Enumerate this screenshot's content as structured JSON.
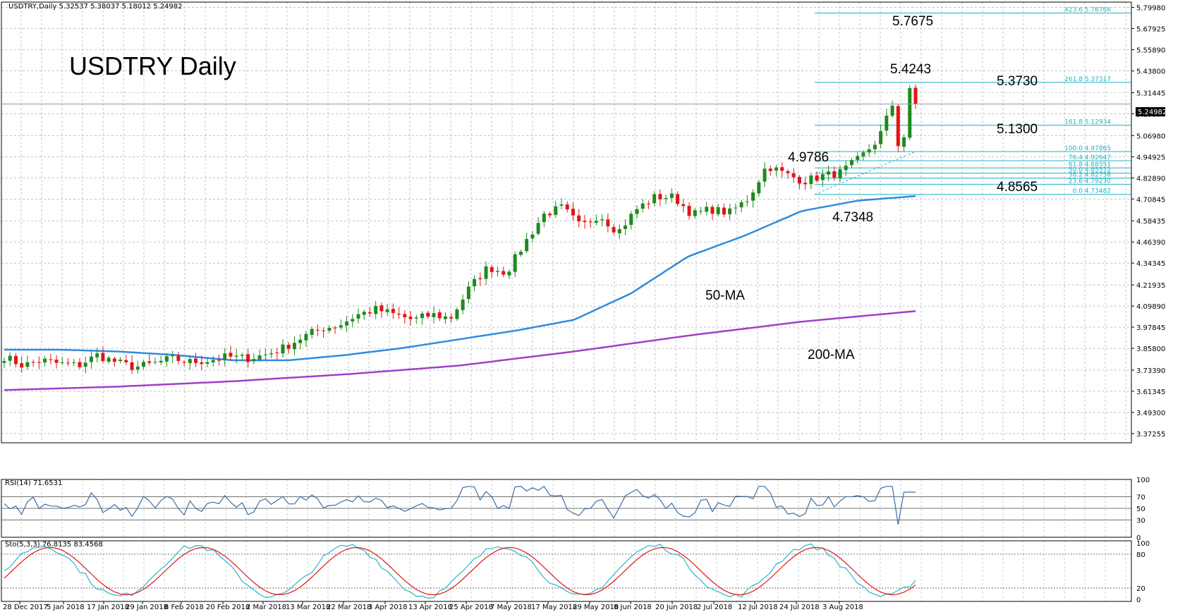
{
  "header": {
    "main": "USDTRY,Daily  5.32537 5.38037 5.18012 5.24982",
    "rsi": "RSI(14) 71.6531",
    "sto": "Sto(5,3,3) 76.8135 83.4568"
  },
  "title": "USDTRY Daily",
  "current_price_label": "5.24982",
  "colors": {
    "bull": "#1e8a1e",
    "bear": "#e01515",
    "ma50": "#2f8be0",
    "ma200": "#a040c8",
    "fib": "#1fb3c6",
    "grid": "#9aa0a6",
    "rsi_line": "#3a6fa8",
    "sto_main": "#26b8c8",
    "sto_signal": "#e01515"
  },
  "annotations": [
    {
      "name": "annotation-5-7675",
      "text": "5.7675"
    },
    {
      "name": "annotation-5-4243",
      "text": "5.4243"
    },
    {
      "name": "annotation-5-3730",
      "text": "5.3730"
    },
    {
      "name": "annotation-5-1300",
      "text": "5.1300"
    },
    {
      "name": "annotation-4-9786",
      "text": "4.9786"
    },
    {
      "name": "annotation-4-8565",
      "text": "4.8565"
    },
    {
      "name": "annotation-4-7348",
      "text": "4.7348"
    },
    {
      "name": "annotation-50-ma",
      "text": "50-MA"
    },
    {
      "name": "annotation-200-ma",
      "text": "200-MA"
    }
  ],
  "fib_levels": [
    {
      "label": "423.6  5.76766",
      "value": 5.76766
    },
    {
      "label": "261.8  5.37317",
      "value": 5.37317
    },
    {
      "label": "161.8  5.12934",
      "value": 5.12934
    },
    {
      "label": "100.0  4.97865",
      "value": 4.97865
    },
    {
      "label": "76.4  4.92647",
      "value": 4.92647
    },
    {
      "label": "61.8  4.88551",
      "value": 4.88551
    },
    {
      "label": "50.0  4.85572",
      "value": 4.85572
    },
    {
      "label": "38.2  4.82756",
      "value": 4.82756
    },
    {
      "label": "23.6  4.79230",
      "value": 4.7923
    },
    {
      "label": "0.0  4.73482",
      "value": 4.73482
    }
  ],
  "chart_data": {
    "type": "candlestick",
    "symbol": "USDTRY",
    "timeframe": "Daily",
    "y_range": [
      3.32,
      5.83
    ],
    "y_ticks": [
      "5.79980",
      "5.67925",
      "5.55890",
      "5.43800",
      "5.31445",
      "5.19390",
      "5.06980",
      "4.94925",
      "4.82890",
      "4.70845",
      "4.58435",
      "4.46390",
      "4.34345",
      "4.21935",
      "4.09890",
      "3.97845",
      "3.85800",
      "3.73390",
      "3.61345",
      "3.49300",
      "3.37255"
    ],
    "x_ticks": [
      "28 Dec 2017",
      "5 Jan 2018",
      "17 Jan 2018",
      "29 Jan 2018",
      "8 Feb 2018",
      "20 Feb 2018",
      "2 Mar 2018",
      "13 Mar 2018",
      "22 Mar 2018",
      "3 Apr 2018",
      "13 Apr 2018",
      "25 Apr 2018",
      "7 May 2018",
      "17 May 2018",
      "29 May 2018",
      "8 Jun 2018",
      "20 Jun 2018",
      "2 Jul 2018",
      "12 Jul 2018",
      "24 Jul 2018",
      "3 Aug 2018"
    ],
    "anchor_closes": [
      3.81,
      3.76,
      3.79,
      3.77,
      3.76,
      3.82,
      3.78,
      3.75,
      3.77,
      3.8,
      3.78,
      3.79,
      3.81,
      3.8,
      3.82,
      3.86,
      3.92,
      3.97,
      3.99,
      4.05,
      4.08,
      4.05,
      4.02,
      4.05,
      4.03,
      4.2,
      4.32,
      4.29,
      4.46,
      4.62,
      4.66,
      4.55,
      4.62,
      4.52,
      4.65,
      4.72,
      4.72,
      4.62,
      4.65,
      4.63,
      4.71,
      4.9,
      4.85,
      4.81,
      4.84,
      4.86,
      4.94,
      5.05,
      5.31,
      5.25
    ],
    "ma50_anchors": [
      3.85,
      3.85,
      3.84,
      3.82,
      3.79,
      3.79,
      3.82,
      3.86,
      3.91,
      3.96,
      4.02,
      4.17,
      4.38,
      4.5,
      4.64,
      4.7,
      4.725
    ],
    "ma200_anchors": [
      3.62,
      3.64,
      3.67,
      3.71,
      3.76,
      3.84,
      3.93,
      4.01,
      4.07
    ],
    "rsi_range": [
      0,
      100
    ],
    "rsi_levels": [
      "100",
      "70",
      "50",
      "30",
      "0"
    ],
    "sto_levels": [
      "100",
      "80",
      "20",
      "0"
    ]
  }
}
